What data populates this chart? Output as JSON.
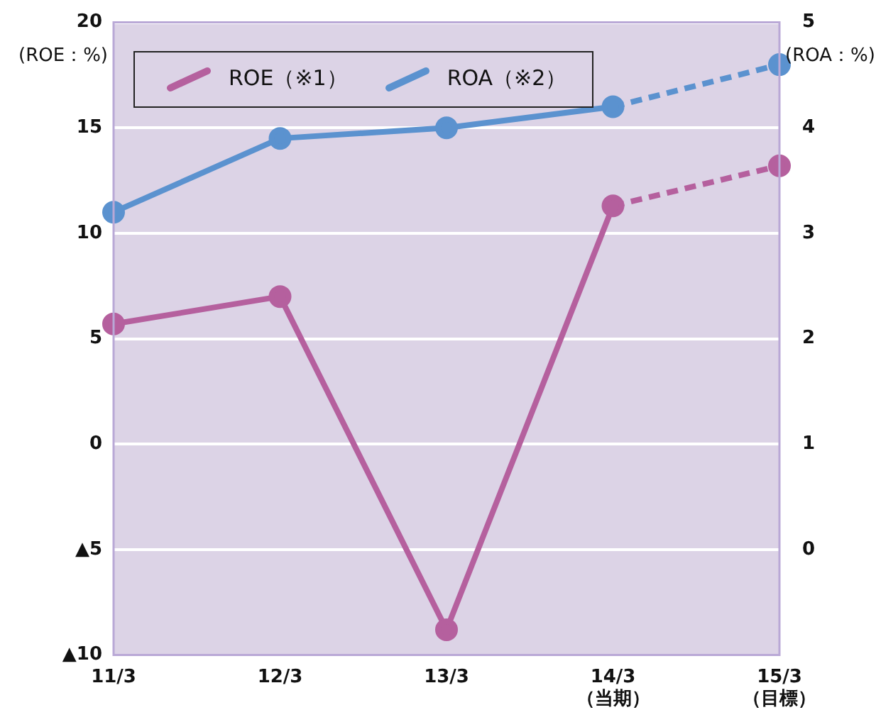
{
  "chart_data": {
    "type": "line",
    "categories": [
      "11/3",
      "12/3",
      "13/3",
      "14/3\n（当期）",
      "15/3\n（目標）"
    ],
    "series": [
      {
        "name": "ROE（※1）",
        "color": "#b5609e",
        "values": [
          5.7,
          7.0,
          -8.8,
          11.3,
          null
        ]
      },
      {
        "color": "#b5609e",
        "values": [
          null,
          null,
          null,
          11.3,
          13.2
        ],
        "line_style": "dashed"
      },
      {
        "name": "ROA（※2）",
        "color": "#5b92cf",
        "values": [
          3.2,
          3.9,
          4.0,
          4.2,
          null
        ],
        "axis": "y2"
      },
      {
        "color": "#5b92cf",
        "values": [
          null,
          null,
          null,
          4.2,
          4.6
        ],
        "axis": "y2",
        "line_style": "dashed"
      }
    ],
    "ylabel": "(ROE：%)",
    "y2label": "(ROA：%)",
    "ylim": [
      -10,
      20
    ],
    "yticks": [
      {
        "value": -10,
        "label": "▲10"
      },
      {
        "value": -5,
        "label": "▲5"
      },
      0,
      5,
      10,
      15,
      20
    ],
    "y2lim": [
      -1,
      5
    ],
    "y2ticks": [
      0,
      1,
      2,
      3,
      4,
      5
    ],
    "grid": "y",
    "legend": "top left",
    "marker": "circle",
    "line_style": "solid"
  }
}
